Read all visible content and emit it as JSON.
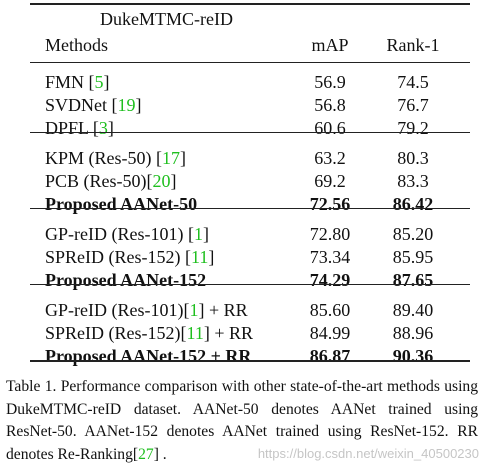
{
  "table": {
    "dataset": "DukeMTMC-reID",
    "headers": [
      "Methods",
      "mAP",
      "Rank-1"
    ],
    "groups": [
      [
        {
          "method": "FMN [",
          "cite": "5",
          "after": "]",
          "map": "56.9",
          "rank1": "74.5",
          "bold": false
        },
        {
          "method": "SVDNet [",
          "cite": "19",
          "after": "]",
          "map": "56.8",
          "rank1": "76.7",
          "bold": false
        },
        {
          "method": "DPFL [",
          "cite": "3",
          "after": "]",
          "map": "60.6",
          "rank1": "79.2",
          "bold": false
        }
      ],
      [
        {
          "method": "KPM (Res-50) [",
          "cite": "17",
          "after": "]",
          "map": "63.2",
          "rank1": "80.3",
          "bold": false
        },
        {
          "method": "PCB (Res-50)[",
          "cite": "20",
          "after": "]",
          "map": "69.2",
          "rank1": "83.3",
          "bold": false
        },
        {
          "method": "Proposed AANet-50",
          "map": "72.56",
          "rank1": "86.42",
          "bold": true
        }
      ],
      [
        {
          "method": "GP-reID (Res-101) [",
          "cite": "1",
          "after": "]",
          "map": "72.80",
          "rank1": "85.20",
          "bold": false
        },
        {
          "method": "SPReID (Res-152) [",
          "cite": "11",
          "after": "]",
          "map": "73.34",
          "rank1": "85.95",
          "bold": false
        },
        {
          "method": "Proposed AANet-152",
          "map": "74.29",
          "rank1": "87.65",
          "bold": true
        }
      ],
      [
        {
          "method": "GP-reID (Res-101)[",
          "cite": "1",
          "after": "] + RR",
          "map": "85.60",
          "rank1": "89.40",
          "bold": false
        },
        {
          "method": "SPReID (Res-152)[",
          "cite": "11",
          "after": "] + RR",
          "map": "84.99",
          "rank1": "88.96",
          "bold": false
        },
        {
          "method": "Proposed AANet-152 + RR",
          "map": "86.87",
          "rank1": "90.36",
          "bold": true
        }
      ]
    ]
  },
  "caption": {
    "text": "Table 1. Performance comparison with other state-of-the-art methods using DukeMTMC-reID dataset. AANet-50 denotes AANet trained using ResNet-50. AANet-152 denotes AANet trained using ResNet-152. RR denotes Re-Ranking[",
    "cite": "27",
    "after": "] ."
  },
  "watermark": "https://blog.csdn.net/weixin_40500230"
}
